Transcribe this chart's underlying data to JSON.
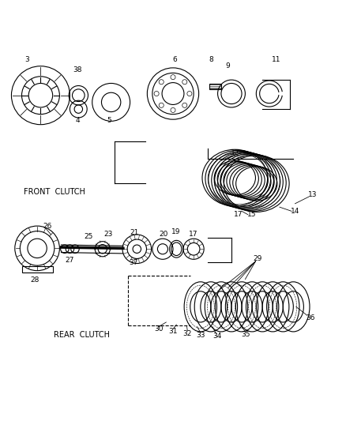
{
  "bg_color": "#ffffff",
  "line_color": "#000000",
  "figsize": [
    4.38,
    5.33
  ],
  "dpi": 100
}
